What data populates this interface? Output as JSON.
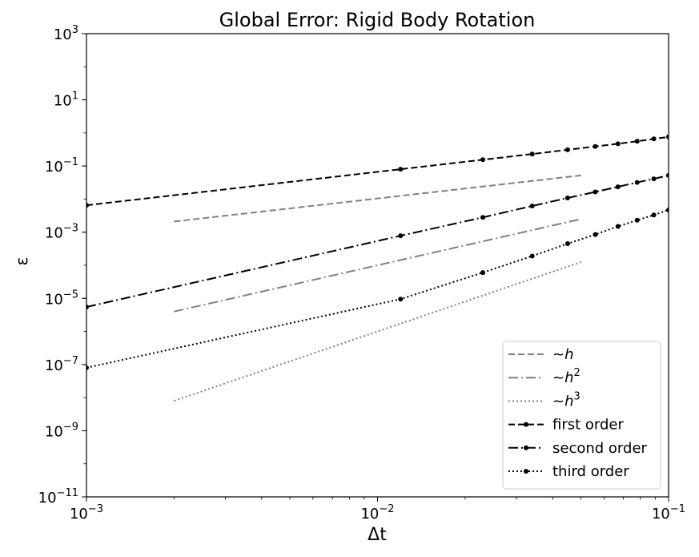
{
  "chart_data": {
    "type": "line",
    "title": "Global Error: Rigid Body Rotation",
    "xlabel": "Δt",
    "ylabel": "ε",
    "xscale": "log",
    "yscale": "log",
    "xlim": [
      0.001,
      0.1
    ],
    "ylim": [
      1e-11,
      1000
    ],
    "x_ticks": [
      {
        "value": 0.001,
        "base": "10",
        "exp": "−3"
      },
      {
        "value": 0.01,
        "base": "10",
        "exp": "−2"
      },
      {
        "value": 0.1,
        "base": "10",
        "exp": "−1"
      }
    ],
    "y_ticks": [
      {
        "value": 1000,
        "base": "10",
        "exp": "3"
      },
      {
        "value": 10,
        "base": "10",
        "exp": "1"
      },
      {
        "value": 0.1,
        "base": "10",
        "exp": "−1"
      },
      {
        "value": 0.001,
        "base": "10",
        "exp": "−3"
      },
      {
        "value": 1e-05,
        "base": "10",
        "exp": "−5"
      },
      {
        "value": 1e-07,
        "base": "10",
        "exp": "−7"
      },
      {
        "value": 1e-09,
        "base": "10",
        "exp": "−9"
      },
      {
        "value": 1e-11,
        "base": "10",
        "exp": "−11"
      }
    ],
    "grid": false,
    "legend_position": "lower right",
    "series": [
      {
        "name": "~h",
        "color": "#808080",
        "dash": "dashed",
        "markers": false,
        "x": [
          0.002,
          0.05
        ],
        "y": [
          0.0021,
          0.052
        ]
      },
      {
        "name": "~h²",
        "color": "#808080",
        "dash": "dashdot",
        "markers": false,
        "x": [
          0.002,
          0.05
        ],
        "y": [
          4e-06,
          0.0025
        ]
      },
      {
        "name": "~h³",
        "color": "#808080",
        "dash": "dotted",
        "markers": false,
        "x": [
          0.002,
          0.05
        ],
        "y": [
          8e-09,
          0.000125
        ]
      },
      {
        "name": "first order",
        "color": "#000000",
        "dash": "dashed",
        "markers": true,
        "x": [
          0.001,
          0.012,
          0.023,
          0.034,
          0.045,
          0.056,
          0.067,
          0.078,
          0.089,
          0.1
        ],
        "y": [
          0.0065,
          0.08,
          0.155,
          0.23,
          0.31,
          0.39,
          0.47,
          0.56,
          0.66,
          0.76
        ]
      },
      {
        "name": "second order",
        "color": "#000000",
        "dash": "dashdot",
        "markers": true,
        "x": [
          0.001,
          0.012,
          0.023,
          0.034,
          0.045,
          0.056,
          0.067,
          0.078,
          0.089,
          0.1
        ],
        "y": [
          5.5e-06,
          0.00078,
          0.0028,
          0.0062,
          0.0108,
          0.0165,
          0.0235,
          0.032,
          0.041,
          0.052
        ]
      },
      {
        "name": "third order",
        "color": "#000000",
        "dash": "dotted",
        "markers": true,
        "x": [
          0.001,
          0.012,
          0.023,
          0.034,
          0.045,
          0.056,
          0.067,
          0.078,
          0.089,
          0.1
        ],
        "y": [
          8e-08,
          9.5e-06,
          6e-05,
          0.00019,
          0.00045,
          0.00085,
          0.0015,
          0.0023,
          0.0033,
          0.0047
        ]
      }
    ],
    "legend_labels": [
      {
        "base": "~",
        "italic": "h",
        "sup": ""
      },
      {
        "base": "~",
        "italic": "h",
        "sup": "2"
      },
      {
        "base": "~",
        "italic": "h",
        "sup": "3"
      },
      {
        "base": "first order",
        "italic": "",
        "sup": ""
      },
      {
        "base": "second order",
        "italic": "",
        "sup": ""
      },
      {
        "base": "third order",
        "italic": "",
        "sup": ""
      }
    ]
  }
}
